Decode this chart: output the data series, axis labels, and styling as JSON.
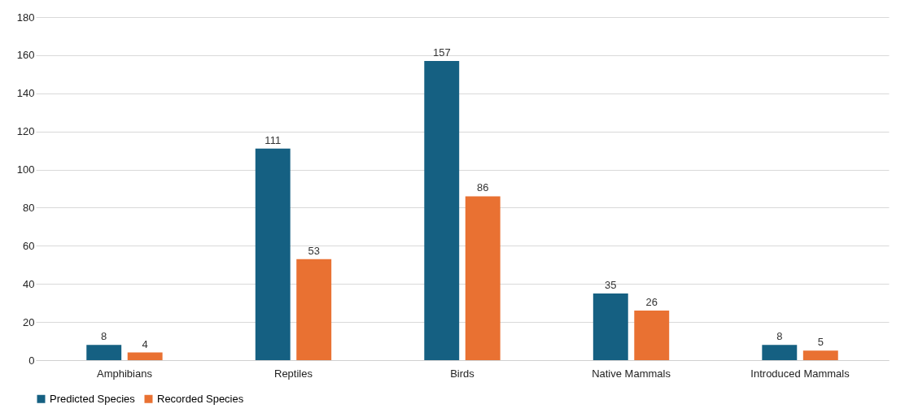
{
  "chart_data": {
    "type": "bar",
    "categories": [
      "Amphibians",
      "Reptiles",
      "Birds",
      "Native Mammals",
      "Introduced Mammals"
    ],
    "series": [
      {
        "name": "Predicted Species",
        "color": "#156082",
        "values": [
          8,
          111,
          157,
          35,
          8
        ]
      },
      {
        "name": "Recorded Species",
        "color": "#e97132",
        "values": [
          4,
          53,
          86,
          26,
          5
        ]
      }
    ],
    "ylim": [
      0,
      180
    ],
    "yticks": [
      0,
      20,
      40,
      60,
      80,
      100,
      120,
      140,
      160,
      180
    ],
    "grid": "y",
    "legend": "bottom",
    "data_labels": true
  }
}
